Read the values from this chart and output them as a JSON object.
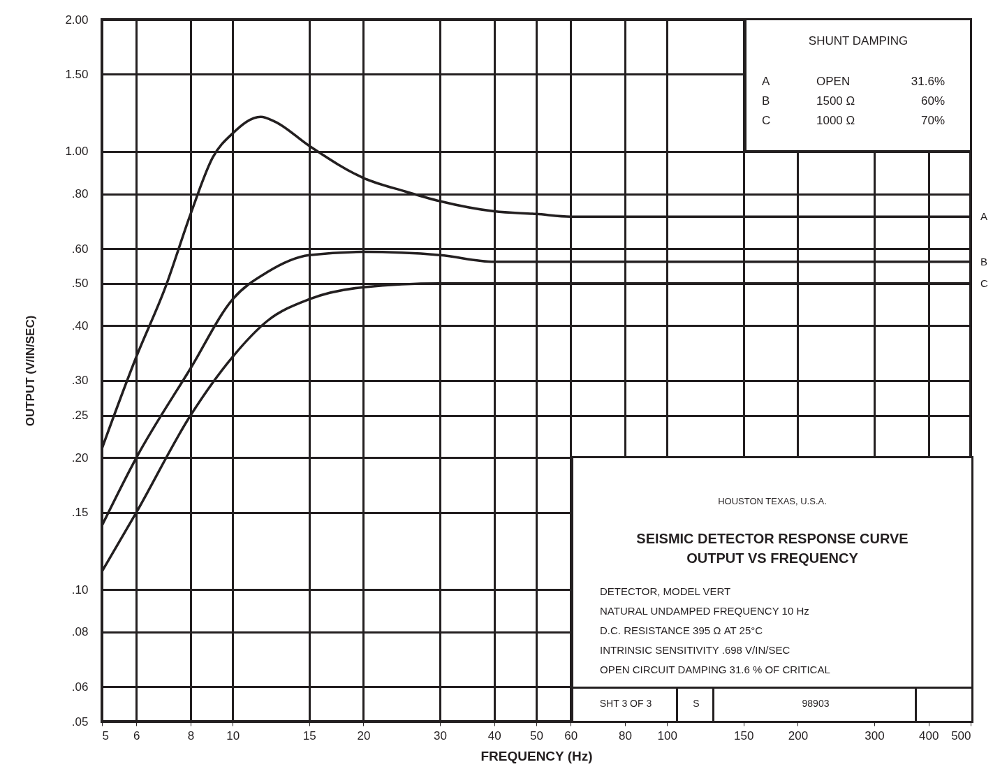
{
  "chart_data": {
    "type": "line",
    "title": "SEISMIC DETECTOR RESPONSE CURVE",
    "subtitle": "OUTPUT VS FREQUENCY",
    "xlabel": "FREQUENCY (Hz)",
    "ylabel": "OUTPUT (V/IN/SEC)",
    "log": "xy",
    "grid": true,
    "line_style": "solid",
    "xlim": [
      5,
      500
    ],
    "xticks": [
      5,
      6,
      8,
      10,
      15,
      20,
      30,
      40,
      50,
      60,
      80,
      100,
      150,
      200,
      300,
      400,
      500
    ],
    "ylim": [
      0.05,
      2
    ],
    "yticks": [
      {
        "value": 0.05,
        "label": ".05"
      },
      {
        "value": 0.06,
        "label": ".06"
      },
      {
        "value": 0.08,
        "label": ".08"
      },
      {
        "value": 0.1,
        "label": ".10"
      },
      {
        "value": 0.15,
        "label": ".15"
      },
      {
        "value": 0.2,
        "label": ".20"
      },
      {
        "value": 0.25,
        "label": ".25"
      },
      {
        "value": 0.3,
        "label": ".30"
      },
      {
        "value": 0.4,
        "label": ".40"
      },
      {
        "value": 0.5,
        "label": ".50"
      },
      {
        "value": 0.6,
        "label": ".60"
      },
      {
        "value": 0.8,
        "label": ".80"
      },
      {
        "value": 1,
        "label": "1.00"
      },
      {
        "value": 1.5,
        "label": "1.50"
      },
      {
        "value": 2,
        "label": "2.00"
      }
    ],
    "x": [
      5,
      6,
      7,
      8,
      9,
      10,
      11.6,
      12.5,
      15,
      20,
      25,
      30,
      40,
      50,
      60,
      100,
      200,
      500
    ],
    "series": [
      {
        "name": "A",
        "color": "#231f20",
        "values": [
          0.21,
          0.34,
          0.49,
          0.72,
          0.97,
          1.1,
          1.2,
          1.17,
          1.03,
          0.87,
          0.81,
          0.77,
          0.73,
          0.72,
          0.71,
          0.71,
          0.71,
          0.71
        ]
      },
      {
        "name": "B",
        "color": "#231f20",
        "x": [
          5,
          6,
          8,
          10,
          12,
          15,
          20,
          30,
          40,
          60,
          100,
          200,
          500
        ],
        "values": [
          0.14,
          0.2,
          0.32,
          0.46,
          0.53,
          0.58,
          0.59,
          0.58,
          0.56,
          0.56,
          0.56,
          0.56,
          0.56
        ]
      },
      {
        "name": "C",
        "color": "#231f20",
        "x": [
          5,
          6,
          8,
          10,
          12,
          15,
          20,
          30,
          60,
          100,
          200,
          500
        ],
        "values": [
          0.11,
          0.15,
          0.25,
          0.34,
          0.41,
          0.46,
          0.49,
          0.5,
          0.5,
          0.5,
          0.5,
          0.5
        ]
      }
    ],
    "annotations": [
      "SHUNT DAMPING",
      "A",
      "OPEN",
      "31.6%",
      "B",
      "1500 Ω",
      "60%",
      "C",
      "1000 Ω",
      "70%",
      "HOUSTON TEXAS, U.S.A.",
      "DETECTOR, MODEL VERT",
      "NATURAL UNDAMPED FREQUENCY 10 Hz",
      "D.C. RESISTANCE 395 Ω AT 25°C",
      "INTRINSIC SENSITIVITY .698 V/IN/SEC",
      "OPEN CIRCUIT DAMPING 31.6 % OF CRITICAL",
      "SHT 3 OF 3",
      "S",
      "98903"
    ]
  }
}
